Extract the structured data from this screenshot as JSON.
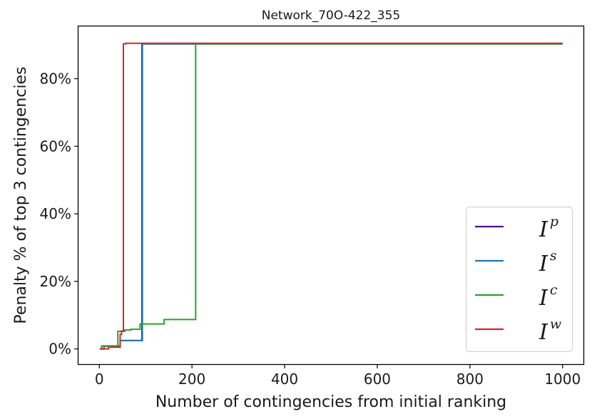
{
  "chart_data": {
    "type": "line",
    "title": "Network_70O-422_355",
    "xlabel": "Number of contingencies from initial ranking",
    "ylabel": "Penalty % of top 3 contingencies",
    "xlim": [
      -45,
      1045
    ],
    "ylim": [
      -4.5,
      95.5
    ],
    "xticks": [
      0,
      200,
      400,
      600,
      800,
      1000
    ],
    "yticks": [
      0,
      20,
      40,
      60,
      80
    ],
    "ytick_format": "{v}%",
    "grid": false,
    "legend_position": "lower-right",
    "series": [
      {
        "name": "I^p",
        "legend_base": "I",
        "legend_sup": "p",
        "color": "#4b0f8c",
        "points": [
          [
            1,
            0
          ],
          [
            10,
            0
          ],
          [
            10,
            0.8
          ],
          [
            45,
            0.8
          ],
          [
            45,
            2.5
          ],
          [
            92,
            2.5
          ],
          [
            92,
            90.3
          ],
          [
            1000,
            90.3
          ]
        ]
      },
      {
        "name": "I^s",
        "legend_base": "I",
        "legend_sup": "s",
        "color": "#1f77b4",
        "points": [
          [
            1,
            0
          ],
          [
            10,
            0
          ],
          [
            10,
            0.8
          ],
          [
            45,
            0.8
          ],
          [
            45,
            2.5
          ],
          [
            93,
            2.5
          ],
          [
            93,
            90.3
          ],
          [
            1000,
            90.3
          ]
        ]
      },
      {
        "name": "I^c",
        "legend_base": "I",
        "legend_sup": "c",
        "color": "#2ca02c",
        "points": [
          [
            1,
            0
          ],
          [
            5,
            0
          ],
          [
            5,
            0.9
          ],
          [
            40,
            0.9
          ],
          [
            40,
            5.2
          ],
          [
            55,
            5.2
          ],
          [
            55,
            5.6
          ],
          [
            68,
            5.6
          ],
          [
            68,
            5.8
          ],
          [
            88,
            5.8
          ],
          [
            88,
            7.4
          ],
          [
            140,
            7.4
          ],
          [
            140,
            8.7
          ],
          [
            208,
            8.7
          ],
          [
            208,
            90.3
          ],
          [
            1000,
            90.3
          ]
        ]
      },
      {
        "name": "I^w",
        "legend_base": "I",
        "legend_sup": "w",
        "color": "#d62728",
        "points": [
          [
            1,
            0
          ],
          [
            20,
            0
          ],
          [
            20,
            0.5
          ],
          [
            45,
            0.5
          ],
          [
            45,
            4.3
          ],
          [
            48,
            4.3
          ],
          [
            48,
            5.3
          ],
          [
            52,
            5.3
          ],
          [
            52,
            90.3
          ],
          [
            57,
            90.3
          ],
          [
            57,
            90.5
          ],
          [
            1000,
            90.5
          ]
        ]
      }
    ]
  }
}
